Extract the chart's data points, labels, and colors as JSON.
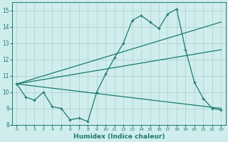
{
  "xlabel": "Humidex (Indice chaleur)",
  "x": [
    0,
    1,
    2,
    3,
    4,
    5,
    6,
    7,
    8,
    9,
    10,
    11,
    12,
    13,
    14,
    15,
    16,
    17,
    18,
    19,
    20,
    21,
    22,
    23
  ],
  "line1": [
    10.5,
    9.7,
    9.5,
    10.0,
    9.1,
    9.0,
    8.3,
    8.4,
    8.2,
    10.0,
    11.1,
    12.1,
    13.0,
    14.4,
    14.7,
    14.3,
    13.9,
    14.8,
    15.1,
    12.6,
    10.6,
    9.6,
    9.0,
    8.9
  ],
  "trend1_x": [
    0,
    23
  ],
  "trend1_y": [
    10.5,
    14.3
  ],
  "trend2_x": [
    0,
    23
  ],
  "trend2_y": [
    10.5,
    12.6
  ],
  "trend3_x": [
    0,
    23
  ],
  "trend3_y": [
    10.5,
    9.0
  ],
  "color": "#1a7a6e",
  "bg_color": "#d0eded",
  "grid_color": "#aacece",
  "ylim": [
    8,
    15.5
  ],
  "xlim": [
    -0.5,
    23.5
  ],
  "yticks": [
    8,
    9,
    10,
    11,
    12,
    13,
    14,
    15
  ],
  "xticks": [
    0,
    1,
    2,
    3,
    4,
    5,
    6,
    7,
    8,
    9,
    10,
    11,
    12,
    13,
    14,
    15,
    16,
    17,
    18,
    19,
    20,
    21,
    22,
    23
  ]
}
